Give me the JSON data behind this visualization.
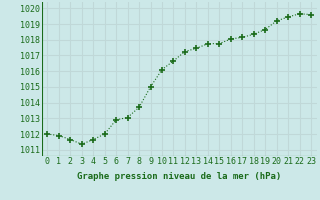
{
  "x": [
    0,
    1,
    2,
    3,
    4,
    5,
    6,
    7,
    8,
    9,
    10,
    11,
    12,
    13,
    14,
    15,
    16,
    17,
    18,
    19,
    20,
    21,
    22,
    23
  ],
  "y": [
    1012.0,
    1011.9,
    1011.65,
    1011.35,
    1011.65,
    1012.0,
    1012.9,
    1013.05,
    1013.7,
    1015.0,
    1016.1,
    1016.65,
    1017.25,
    1017.45,
    1017.75,
    1017.75,
    1018.05,
    1018.15,
    1018.35,
    1018.65,
    1019.2,
    1019.45,
    1019.65,
    1019.6
  ],
  "line_color": "#1a6b1a",
  "marker": "+",
  "marker_size": 4,
  "marker_lw": 1.2,
  "bg_color": "#cce8e8",
  "grid_color": "#c0d8d8",
  "ylabel_ticks": [
    1011,
    1012,
    1013,
    1014,
    1015,
    1016,
    1017,
    1018,
    1019,
    1020
  ],
  "ylim": [
    1010.6,
    1020.4
  ],
  "xlim": [
    -0.5,
    23.5
  ],
  "xlabel": "Graphe pression niveau de la mer (hPa)",
  "xlabel_color": "#1a6b1a",
  "tick_color": "#1a6b1a",
  "axis_label_fontsize": 6.5,
  "tick_fontsize": 6.0,
  "line_width": 0.8
}
